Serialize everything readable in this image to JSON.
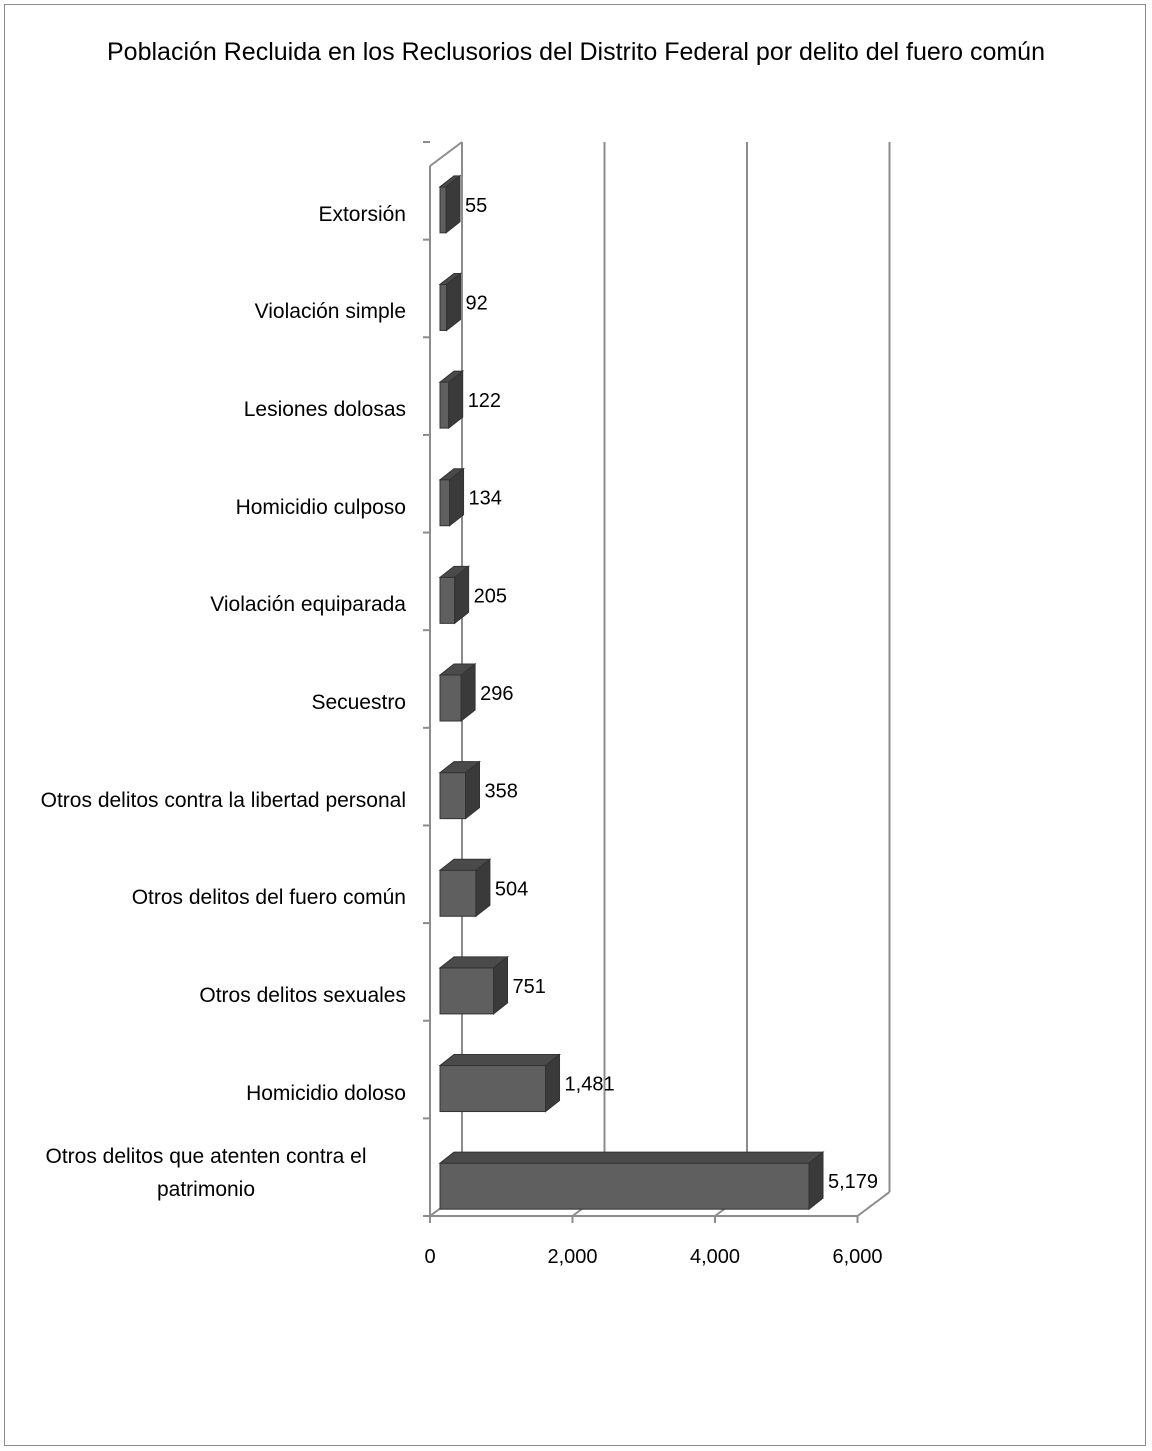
{
  "chart_data": {
    "type": "bar",
    "orientation": "horizontal",
    "style": "3d",
    "title": "Población Recluida en los Reclusorios del Distrito Federal por delito del fuero común",
    "categories": [
      "Extorsión",
      "Violación simple",
      "Lesiones dolosas",
      "Homicidio culposo",
      "Violación equiparada",
      "Secuestro",
      "Otros delitos contra la libertad personal",
      "Otros delitos del fuero común",
      "Otros delitos sexuales",
      "Homicidio doloso",
      "Otros delitos que atenten contra el patrimonio"
    ],
    "values": [
      55,
      92,
      122,
      134,
      205,
      296,
      358,
      504,
      751,
      1481,
      5179
    ],
    "value_labels": [
      "55",
      "92",
      "122",
      "134",
      "205",
      "296",
      "358",
      "504",
      "751",
      "1,481",
      "5,179"
    ],
    "xlim": [
      0,
      6000
    ],
    "xticks": [
      "0",
      "2,000",
      "4,000",
      "6,000"
    ],
    "grid": true,
    "legend": "none",
    "colors": {
      "bar_front": "#5f5f5f",
      "bar_top": "#4a4a4a",
      "bar_side": "#3a3a3a",
      "grid": "#8c8c8c"
    }
  }
}
